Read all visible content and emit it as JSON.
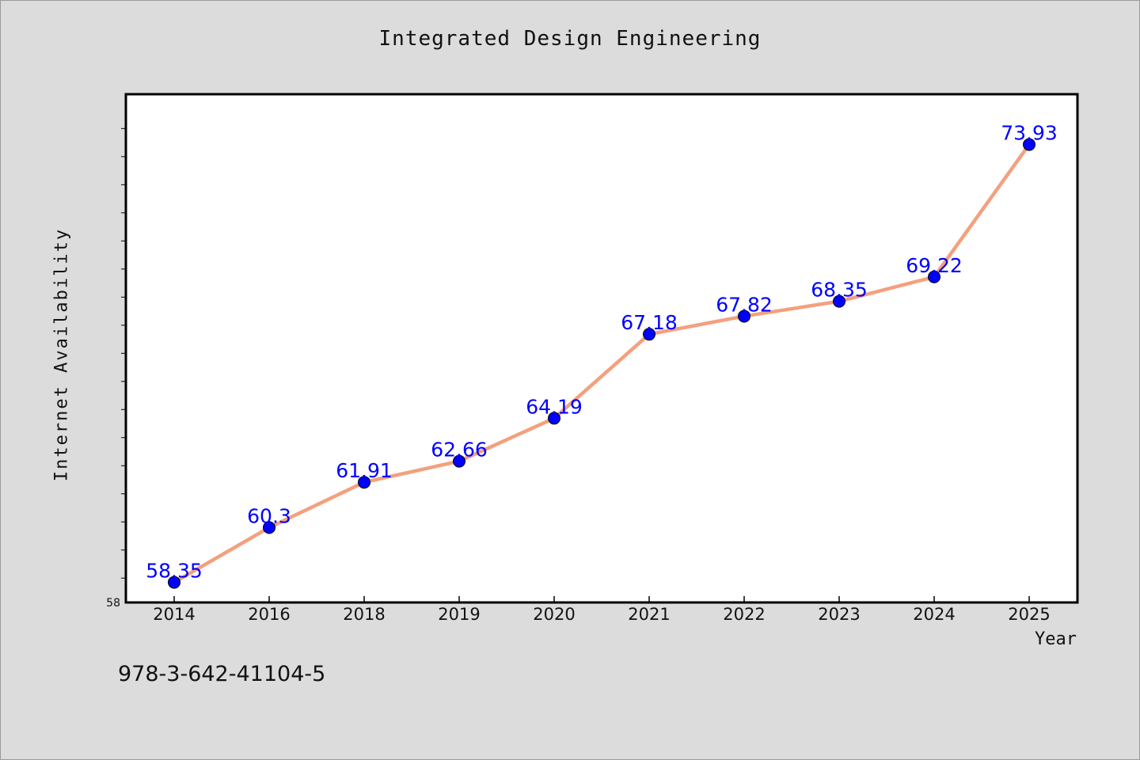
{
  "chart_data": {
    "type": "line",
    "title": "Integrated Design Engineering",
    "xlabel": "Year",
    "ylabel": "Internet Availability",
    "categories": [
      "2014",
      "2016",
      "2018",
      "2019",
      "2020",
      "2021",
      "2022",
      "2023",
      "2024",
      "2025"
    ],
    "series": [
      {
        "values": [
          58.35,
          60.3,
          61.91,
          62.66,
          64.19,
          67.18,
          67.82,
          68.35,
          69.22,
          73.93
        ]
      }
    ],
    "data_labels": [
      "58.35",
      "60.3",
      "61.91",
      "62.66",
      "64.19",
      "67.18",
      "67.82",
      "68.35",
      "69.22",
      "73.93"
    ],
    "y_tick_labels": [
      "58"
    ],
    "ylim": [
      58,
      75
    ],
    "grid": false,
    "legend": "none",
    "colors": {
      "line": "#f4a07e",
      "marker": "#0000ff",
      "data_label": "#0000ff",
      "plot_background": "#ffffff",
      "figure_background": "#dcdcdc"
    }
  },
  "footer": {
    "isbn": "978-3-642-41104-5"
  }
}
